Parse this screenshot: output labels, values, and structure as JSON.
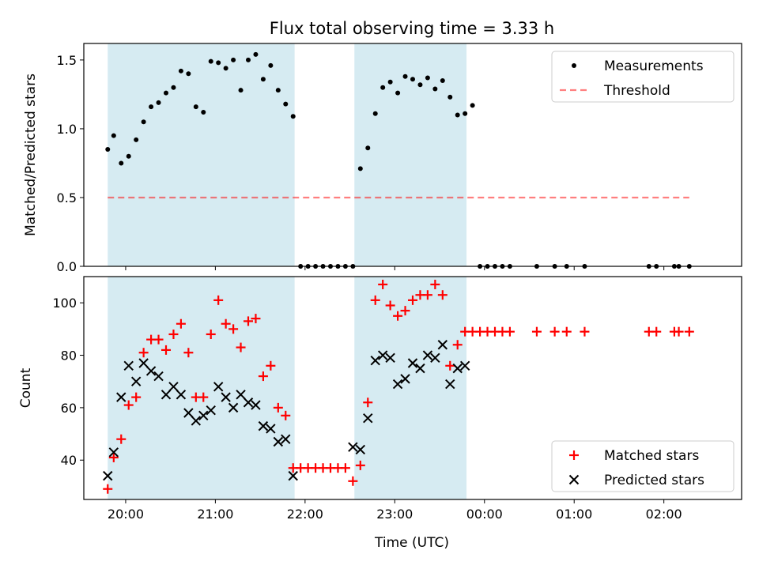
{
  "figure": {
    "title": "Flux total observing time = 3.33 h",
    "xlabel": "Time (UTC)"
  },
  "colors": {
    "span": "#add8e6",
    "measurements": "#000000",
    "threshold": "#ff0000",
    "matched": "#ff0000",
    "predicted": "#000000"
  },
  "chart_data": [
    {
      "type": "scatter",
      "ylabel": "Matched/Predicted stars",
      "ylim": [
        0,
        1.62
      ],
      "yticks": [
        0,
        0.5,
        1.0,
        1.5
      ],
      "ytick_labels": [
        "0.0",
        "0.5",
        "1.0",
        "1.5"
      ],
      "xlim": [
        "19:32",
        "26:52"
      ],
      "shaded_intervals": [
        [
          "19:48",
          "21:53"
        ],
        [
          "22:33",
          "23:48"
        ]
      ],
      "legend": "top-right",
      "series": [
        {
          "name": "Measurements",
          "marker": "dot",
          "x": [
            "19:48",
            "19:52",
            "19:57",
            "20:02",
            "20:07",
            "20:12",
            "20:17",
            "20:22",
            "20:27",
            "20:32",
            "20:37",
            "20:42",
            "20:47",
            "20:52",
            "20:57",
            "21:02",
            "21:07",
            "21:12",
            "21:17",
            "21:22",
            "21:27",
            "21:32",
            "21:37",
            "21:42",
            "21:47",
            "21:52",
            "21:57",
            "22:02",
            "22:07",
            "22:12",
            "22:17",
            "22:22",
            "22:27",
            "22:32",
            "22:37",
            "22:42",
            "22:47",
            "22:52",
            "22:57",
            "23:02",
            "23:07",
            "23:12",
            "23:17",
            "23:22",
            "23:27",
            "23:32",
            "23:37",
            "23:42",
            "23:47",
            "23:52",
            "23:57",
            "24:02",
            "24:07",
            "24:12",
            "24:17",
            "24:35",
            "24:47",
            "24:55",
            "25:07",
            "25:50",
            "25:55",
            "26:07",
            "26:10",
            "26:17"
          ],
          "y": [
            0.85,
            0.95,
            0.75,
            0.8,
            0.92,
            1.05,
            1.16,
            1.19,
            1.26,
            1.3,
            1.42,
            1.4,
            1.16,
            1.12,
            1.49,
            1.48,
            1.44,
            1.5,
            1.28,
            1.5,
            1.54,
            1.36,
            1.46,
            1.28,
            1.18,
            1.09,
            0,
            0,
            0,
            0,
            0,
            0,
            0,
            0,
            0.71,
            0.86,
            1.11,
            1.3,
            1.34,
            1.26,
            1.38,
            1.36,
            1.32,
            1.37,
            1.29,
            1.35,
            1.23,
            1.1,
            1.11,
            1.17,
            0,
            0,
            0,
            0,
            0,
            0,
            0,
            0,
            0,
            0,
            0,
            0,
            0,
            0
          ]
        },
        {
          "name": "Threshold",
          "style": "dashed",
          "x": [
            "19:48",
            "26:17"
          ],
          "y": [
            0.5,
            0.5
          ]
        }
      ]
    },
    {
      "type": "scatter",
      "ylabel": "Count",
      "ylim": [
        25,
        110
      ],
      "yticks": [
        40,
        60,
        80,
        100
      ],
      "xlim": [
        "19:32",
        "26:52"
      ],
      "xticks": [
        "20:00",
        "21:00",
        "22:00",
        "23:00",
        "00:00",
        "01:00",
        "02:00"
      ],
      "shaded_intervals": [
        [
          "19:48",
          "21:53"
        ],
        [
          "22:33",
          "23:48"
        ]
      ],
      "legend": "bottom-right",
      "series": [
        {
          "name": "Matched stars",
          "marker": "plus",
          "x": [
            "19:48",
            "19:52",
            "19:57",
            "20:02",
            "20:07",
            "20:12",
            "20:17",
            "20:22",
            "20:27",
            "20:32",
            "20:37",
            "20:42",
            "20:47",
            "20:52",
            "20:57",
            "21:02",
            "21:07",
            "21:12",
            "21:17",
            "21:22",
            "21:27",
            "21:32",
            "21:37",
            "21:42",
            "21:47",
            "21:52",
            "21:57",
            "22:02",
            "22:07",
            "22:12",
            "22:17",
            "22:22",
            "22:27",
            "22:32",
            "22:37",
            "22:42",
            "22:47",
            "22:52",
            "22:57",
            "23:02",
            "23:07",
            "23:12",
            "23:17",
            "23:22",
            "23:27",
            "23:32",
            "23:37",
            "23:42",
            "23:47",
            "23:52",
            "23:57",
            "24:02",
            "24:07",
            "24:12",
            "24:17",
            "24:35",
            "24:47",
            "24:55",
            "25:07",
            "25:50",
            "25:55",
            "26:07",
            "26:10",
            "26:17"
          ],
          "y": [
            29,
            41,
            48,
            61,
            64,
            81,
            86,
            86,
            82,
            88,
            92,
            81,
            64,
            64,
            88,
            101,
            92,
            90,
            83,
            93,
            94,
            72,
            76,
            60,
            57,
            37,
            37,
            37,
            37,
            37,
            37,
            37,
            37,
            32,
            38,
            62,
            101,
            107,
            99,
            95,
            97,
            101,
            103,
            103,
            107,
            103,
            76,
            84,
            89,
            89,
            89,
            89,
            89,
            89,
            89,
            89,
            89,
            89,
            89,
            89,
            89,
            89,
            89,
            89
          ]
        },
        {
          "name": "Predicted stars",
          "marker": "x",
          "x": [
            "19:48",
            "19:52",
            "19:57",
            "20:02",
            "20:07",
            "20:12",
            "20:17",
            "20:22",
            "20:27",
            "20:32",
            "20:37",
            "20:42",
            "20:47",
            "20:52",
            "20:57",
            "21:02",
            "21:07",
            "21:12",
            "21:17",
            "21:22",
            "21:27",
            "21:32",
            "21:37",
            "21:42",
            "21:47",
            "21:52",
            "22:32",
            "22:37",
            "22:42",
            "22:47",
            "22:52",
            "22:57",
            "23:02",
            "23:07",
            "23:12",
            "23:17",
            "23:22",
            "23:27",
            "23:32",
            "23:37",
            "23:42",
            "23:47"
          ],
          "y": [
            34,
            43,
            64,
            76,
            70,
            77,
            74,
            72,
            65,
            68,
            65,
            58,
            55,
            57,
            59,
            68,
            64,
            60,
            65,
            62,
            61,
            53,
            52,
            47,
            48,
            34,
            45,
            44,
            56,
            78,
            80,
            79,
            69,
            71,
            77,
            75,
            80,
            79,
            84,
            69,
            75,
            76
          ]
        }
      ]
    }
  ]
}
